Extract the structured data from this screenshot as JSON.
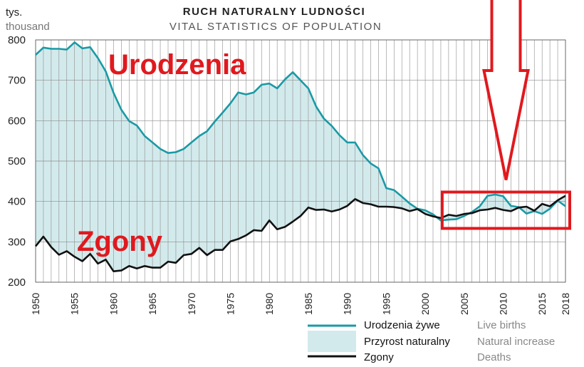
{
  "chart_data": {
    "type": "line",
    "title": "RUCH  NATURALNY  LUDNOŚCI",
    "subtitle": "VITAL  STATISTICS  OF  POPULATION",
    "unit_pl": "tys.",
    "unit_en": "thousand",
    "ylim": [
      200,
      800
    ],
    "yticks": [
      800,
      700,
      600,
      500,
      400,
      300,
      200
    ],
    "xlim": [
      1950,
      2018
    ],
    "xticks": [
      1950,
      1955,
      1960,
      1965,
      1970,
      1975,
      1980,
      1985,
      1990,
      1995,
      2000,
      2005,
      2010,
      2015,
      2018
    ],
    "grid": true,
    "x": [
      1950,
      1951,
      1952,
      1953,
      1954,
      1955,
      1956,
      1957,
      1958,
      1959,
      1960,
      1961,
      1962,
      1963,
      1964,
      1965,
      1966,
      1967,
      1968,
      1969,
      1970,
      1971,
      1972,
      1973,
      1974,
      1975,
      1976,
      1977,
      1978,
      1979,
      1980,
      1981,
      1982,
      1983,
      1984,
      1985,
      1986,
      1987,
      1988,
      1989,
      1990,
      1991,
      1992,
      1993,
      1994,
      1995,
      1996,
      1997,
      1998,
      1999,
      2000,
      2001,
      2002,
      2003,
      2004,
      2005,
      2006,
      2007,
      2008,
      2009,
      2010,
      2011,
      2012,
      2013,
      2014,
      2015,
      2016,
      2017,
      2018
    ],
    "series": [
      {
        "name": "Urodzenia żywe",
        "name_en": "Live births",
        "color": "#1a9aa5",
        "values": [
          763,
          781,
          778,
          778,
          776,
          794,
          779,
          782,
          755,
          722,
          669,
          627,
          599,
          588,
          562,
          546,
          530,
          520,
          522,
          530,
          546,
          562,
          574,
          598,
          620,
          643,
          670,
          665,
          670,
          689,
          692,
          680,
          702,
          720,
          700,
          680,
          635,
          605,
          587,
          564,
          546,
          546,
          515,
          494,
          482,
          433,
          428,
          412,
          395,
          382,
          378,
          368,
          353,
          355,
          356,
          364,
          374,
          388,
          414,
          417,
          413,
          389,
          386,
          370,
          376,
          369,
          382,
          402,
          388
        ]
      },
      {
        "name": "Zgony",
        "name_en": "Deaths",
        "color": "#111111",
        "values": [
          289,
          313,
          287,
          268,
          277,
          263,
          252,
          270,
          246,
          256,
          227,
          229,
          240,
          234,
          240,
          236,
          236,
          251,
          248,
          267,
          270,
          285,
          267,
          280,
          280,
          301,
          307,
          316,
          329,
          327,
          353,
          331,
          337,
          350,
          364,
          385,
          379,
          380,
          375,
          380,
          389,
          406,
          396,
          393,
          387,
          387,
          386,
          383,
          376,
          381,
          369,
          363,
          359,
          367,
          364,
          369,
          371,
          378,
          380,
          384,
          379,
          376,
          385,
          387,
          377,
          394,
          388,
          403,
          414
        ]
      }
    ],
    "fill": {
      "name": "Przyrost naturalny",
      "name_en": "Natural increase",
      "color": "#d3eaec"
    },
    "annotations": [
      {
        "text": "Urodzenia",
        "color": "#e0191e"
      },
      {
        "text": "Zgony",
        "color": "#e0191e"
      }
    ],
    "highlight": {
      "x_range": [
        2003,
        2018
      ],
      "y_range": [
        335,
        425
      ],
      "color": "#e0191e"
    },
    "arrow": {
      "x": 2010,
      "color": "#e0191e"
    },
    "legend": [
      {
        "label": "Urodzenia żywe",
        "label_en": "Live births",
        "kind": "line",
        "color": "#1a9aa5"
      },
      {
        "label": "Przyrost naturalny",
        "label_en": "Natural increase",
        "kind": "area",
        "color": "#d3eaec"
      },
      {
        "label": "Zgony",
        "label_en": "Deaths",
        "kind": "line",
        "color": "#111111"
      }
    ],
    "legend_position": "bottom-right"
  }
}
